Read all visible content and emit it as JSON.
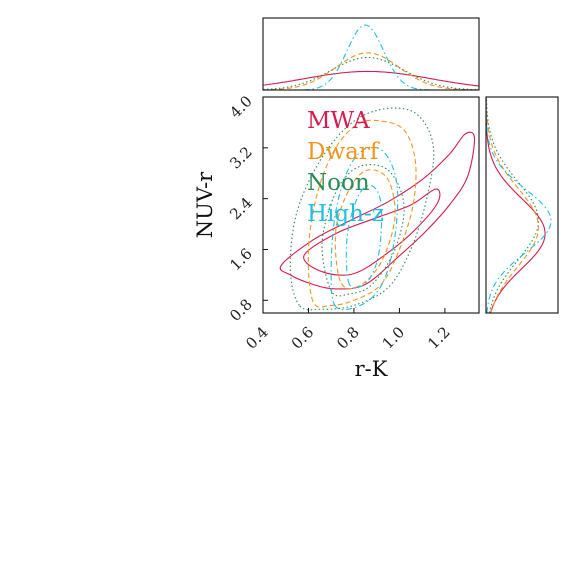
{
  "chart_data": {
    "type": "corner-contour",
    "xlabel": "r-K",
    "ylabel": "NUV-r",
    "xlim": [
      0.4,
      1.35
    ],
    "ylim": [
      0.6,
      4.0
    ],
    "xticks": [
      "0.4",
      "0.6",
      "0.8",
      "1.0",
      "1.2"
    ],
    "yticks": [
      "0.8",
      "1.6",
      "2.4",
      "3.2",
      "4.0"
    ],
    "legend_position": "upper-left",
    "series": [
      {
        "name": "MWA",
        "color": "#d81b4f",
        "dash": "solid",
        "x_marginal": {
          "mean": 0.86,
          "sd": 0.28
        },
        "y_marginal": {
          "mean": 1.85,
          "sd": 0.55
        },
        "contours": [
          [
            [
              0.48,
              1.35
            ],
            [
              0.62,
              1.75
            ],
            [
              0.78,
              2.05
            ],
            [
              0.95,
              2.35
            ],
            [
              1.1,
              2.7
            ],
            [
              1.22,
              3.1
            ],
            [
              1.29,
              3.42
            ],
            [
              1.33,
              3.35
            ],
            [
              1.3,
              2.75
            ],
            [
              1.22,
              2.3
            ],
            [
              1.12,
              1.9
            ],
            [
              1.0,
              1.5
            ],
            [
              0.85,
              1.05
            ],
            [
              0.72,
              0.98
            ],
            [
              0.62,
              1.05
            ],
            [
              0.52,
              1.2
            ]
          ],
          [
            [
              0.58,
              1.5
            ],
            [
              0.72,
              1.85
            ],
            [
              0.9,
              2.1
            ],
            [
              1.05,
              2.3
            ],
            [
              1.16,
              2.55
            ],
            [
              1.17,
              2.35
            ],
            [
              1.08,
              1.95
            ],
            [
              0.95,
              1.55
            ],
            [
              0.8,
              1.22
            ],
            [
              0.66,
              1.25
            ]
          ]
        ]
      },
      {
        "name": "Dwarf",
        "color": "#f0961e",
        "dash": "dashed",
        "x_marginal": {
          "mean": 0.86,
          "sd": 0.14
        },
        "y_marginal": {
          "mean": 1.95,
          "sd": 0.62
        },
        "contours": [
          [
            [
              0.62,
              0.78
            ],
            [
              0.6,
              1.6
            ],
            [
              0.64,
              2.5
            ],
            [
              0.72,
              3.2
            ],
            [
              0.82,
              3.58
            ],
            [
              0.92,
              3.62
            ],
            [
              1.02,
              3.48
            ],
            [
              1.07,
              3.0
            ],
            [
              1.06,
              2.3
            ],
            [
              1.0,
              1.6
            ],
            [
              0.92,
              1.05
            ],
            [
              0.8,
              0.8
            ],
            [
              0.7,
              0.72
            ]
          ],
          [
            [
              0.74,
              1.1
            ],
            [
              0.72,
              1.9
            ],
            [
              0.78,
              2.55
            ],
            [
              0.86,
              2.85
            ],
            [
              0.95,
              2.7
            ],
            [
              0.98,
              2.1
            ],
            [
              0.92,
              1.4
            ],
            [
              0.82,
              1.02
            ]
          ]
        ]
      },
      {
        "name": "Noon",
        "color": "#2e8b57",
        "dash": "dotted",
        "x_marginal": {
          "mean": 0.86,
          "sd": 0.16
        },
        "y_marginal": {
          "mean": 2.05,
          "sd": 0.62
        },
        "contours": [
          [
            [
              0.56,
              0.72
            ],
            [
              0.52,
              1.3
            ],
            [
              0.55,
              2.2
            ],
            [
              0.66,
              3.05
            ],
            [
              0.8,
              3.62
            ],
            [
              0.95,
              3.82
            ],
            [
              1.08,
              3.72
            ],
            [
              1.15,
              3.2
            ],
            [
              1.12,
              2.4
            ],
            [
              1.05,
              1.6
            ],
            [
              0.95,
              1.0
            ],
            [
              0.8,
              0.72
            ],
            [
              0.66,
              0.66
            ]
          ],
          [
            [
              0.7,
              0.95
            ],
            [
              0.66,
              1.7
            ],
            [
              0.72,
              2.5
            ],
            [
              0.82,
              2.9
            ],
            [
              0.95,
              2.85
            ],
            [
              1.02,
              2.3
            ],
            [
              0.98,
              1.6
            ],
            [
              0.88,
              1.05
            ],
            [
              0.78,
              0.9
            ]
          ]
        ]
      },
      {
        "name": "High-z",
        "color": "#1fbfe6",
        "dash": "dashdot",
        "x_marginal": {
          "mean": 0.85,
          "sd": 0.08
        },
        "y_marginal": {
          "mean": 2.05,
          "sd": 0.5
        },
        "contours": [
          [
            [
              0.72,
              0.7
            ],
            [
              0.7,
              1.3
            ],
            [
              0.72,
              2.2
            ],
            [
              0.78,
              2.9
            ],
            [
              0.86,
              3.2
            ],
            [
              0.94,
              3.1
            ],
            [
              0.99,
              2.6
            ],
            [
              0.98,
              1.8
            ],
            [
              0.93,
              1.1
            ],
            [
              0.84,
              0.74
            ]
          ],
          [
            [
              0.78,
              1.05
            ],
            [
              0.77,
              1.8
            ],
            [
              0.82,
              2.45
            ],
            [
              0.88,
              2.6
            ],
            [
              0.92,
              2.3
            ],
            [
              0.91,
              1.55
            ],
            [
              0.86,
              1.1
            ]
          ]
        ]
      }
    ]
  }
}
